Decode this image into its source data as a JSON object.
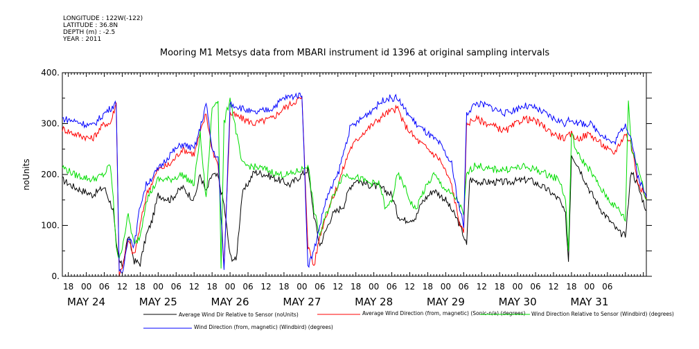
{
  "meta": {
    "longitude": "LONGITUDE : 122W(-122)",
    "latitude": "LATITUDE : 36.8N",
    "depth": "DEPTH (m) : -2.5",
    "year": "YEAR : 2011"
  },
  "chart_data": {
    "type": "line",
    "title": "Mooring M1 Metsys data from MBARI instrument id 1396 at original sampling intervals",
    "ylabel": "noUnits",
    "xlabel": "",
    "ylim": [
      0,
      400
    ],
    "xlim_hours": [
      -8,
      187
    ],
    "y_ticks": [
      "0.",
      "100.",
      "200.",
      "300.",
      "400."
    ],
    "x_hour_ticks": [
      "18",
      "00",
      "06",
      "12",
      "18",
      "00",
      "06",
      "12",
      "18",
      "00",
      "06",
      "12",
      "18",
      "00",
      "06",
      "12",
      "18",
      "00",
      "06",
      "12",
      "18",
      "00",
      "06",
      "12",
      "18",
      "00",
      "06",
      "12",
      "18",
      "00",
      "06"
    ],
    "x_day_labels": [
      "MAY 24",
      "MAY 25",
      "MAY 26",
      "MAY 27",
      "MAY 28",
      "MAY 29",
      "MAY 30",
      "MAY 31"
    ],
    "grid": false,
    "legend_position": "bottom",
    "series": [
      {
        "name": "Average Wind Dir Relative to Sensor (noUnits)",
        "color": "#000000",
        "points": [
          [
            -8,
            190
          ],
          [
            -4,
            175
          ],
          [
            2,
            160
          ],
          [
            6,
            175
          ],
          [
            9,
            130
          ],
          [
            10,
            60
          ],
          [
            11,
            30
          ],
          [
            12,
            20
          ],
          [
            14,
            80
          ],
          [
            16,
            30
          ],
          [
            18,
            25
          ],
          [
            20,
            80
          ],
          [
            22,
            110
          ],
          [
            24,
            160
          ],
          [
            28,
            150
          ],
          [
            32,
            175
          ],
          [
            36,
            150
          ],
          [
            38,
            200
          ],
          [
            40,
            165
          ],
          [
            42,
            200
          ],
          [
            44,
            195
          ],
          [
            46,
            140
          ],
          [
            48,
            40
          ],
          [
            50,
            30
          ],
          [
            52,
            160
          ],
          [
            56,
            205
          ],
          [
            60,
            200
          ],
          [
            64,
            190
          ],
          [
            68,
            180
          ],
          [
            72,
            200
          ],
          [
            74,
            210
          ],
          [
            76,
            120
          ],
          [
            78,
            60
          ],
          [
            80,
            90
          ],
          [
            82,
            120
          ],
          [
            84,
            130
          ],
          [
            86,
            140
          ],
          [
            88,
            175
          ],
          [
            90,
            190
          ],
          [
            94,
            180
          ],
          [
            98,
            175
          ],
          [
            102,
            160
          ],
          [
            104,
            120
          ],
          [
            106,
            110
          ],
          [
            110,
            115
          ],
          [
            112,
            145
          ],
          [
            116,
            170
          ],
          [
            120,
            150
          ],
          [
            124,
            110
          ],
          [
            126,
            80
          ],
          [
            127,
            60
          ],
          [
            128,
            190
          ],
          [
            132,
            185
          ],
          [
            140,
            185
          ],
          [
            148,
            190
          ],
          [
            154,
            170
          ],
          [
            158,
            150
          ],
          [
            160,
            120
          ],
          [
            161,
            30
          ],
          [
            162,
            240
          ],
          [
            164,
            220
          ],
          [
            168,
            170
          ],
          [
            172,
            130
          ],
          [
            176,
            100
          ],
          [
            178,
            85
          ],
          [
            180,
            80
          ],
          [
            182,
            210
          ],
          [
            184,
            180
          ],
          [
            187,
            130
          ]
        ]
      },
      {
        "name": "Average Wind Direction (from, magnetic) (Sonic-n/a) (degrees)",
        "color": "#ff0000",
        "points": [
          [
            -8,
            290
          ],
          [
            -4,
            280
          ],
          [
            2,
            270
          ],
          [
            6,
            300
          ],
          [
            8,
            300
          ],
          [
            10,
            340
          ],
          [
            11,
            0
          ],
          [
            12,
            20
          ],
          [
            14,
            70
          ],
          [
            16,
            40
          ],
          [
            18,
            100
          ],
          [
            20,
            160
          ],
          [
            24,
            210
          ],
          [
            28,
            220
          ],
          [
            32,
            250
          ],
          [
            36,
            240
          ],
          [
            38,
            280
          ],
          [
            40,
            320
          ],
          [
            42,
            250
          ],
          [
            44,
            220
          ],
          [
            46,
            20
          ],
          [
            48,
            320
          ],
          [
            52,
            310
          ],
          [
            56,
            300
          ],
          [
            62,
            310
          ],
          [
            66,
            330
          ],
          [
            70,
            345
          ],
          [
            72,
            350
          ],
          [
            74,
            60
          ],
          [
            76,
            20
          ],
          [
            78,
            80
          ],
          [
            80,
            120
          ],
          [
            84,
            180
          ],
          [
            88,
            250
          ],
          [
            92,
            280
          ],
          [
            96,
            300
          ],
          [
            100,
            320
          ],
          [
            104,
            330
          ],
          [
            106,
            300
          ],
          [
            110,
            270
          ],
          [
            114,
            250
          ],
          [
            118,
            230
          ],
          [
            122,
            180
          ],
          [
            124,
            120
          ],
          [
            126,
            80
          ],
          [
            127,
            300
          ],
          [
            130,
            310
          ],
          [
            134,
            300
          ],
          [
            140,
            285
          ],
          [
            146,
            310
          ],
          [
            150,
            305
          ],
          [
            156,
            280
          ],
          [
            160,
            270
          ],
          [
            162,
            280
          ],
          [
            164,
            270
          ],
          [
            168,
            280
          ],
          [
            172,
            260
          ],
          [
            176,
            240
          ],
          [
            180,
            280
          ],
          [
            182,
            260
          ],
          [
            184,
            190
          ],
          [
            187,
            150
          ]
        ]
      },
      {
        "name": "Wind Direction Relative to Sensor (Windbird) (degrees)",
        "color": "#00dd00",
        "points": [
          [
            -8,
            215
          ],
          [
            -4,
            200
          ],
          [
            2,
            190
          ],
          [
            6,
            200
          ],
          [
            8,
            220
          ],
          [
            9,
            150
          ],
          [
            10,
            60
          ],
          [
            11,
            30
          ],
          [
            12,
            60
          ],
          [
            14,
            120
          ],
          [
            16,
            60
          ],
          [
            18,
            80
          ],
          [
            20,
            150
          ],
          [
            24,
            190
          ],
          [
            28,
            190
          ],
          [
            32,
            200
          ],
          [
            36,
            180
          ],
          [
            38,
            280
          ],
          [
            40,
            150
          ],
          [
            42,
            330
          ],
          [
            44,
            350
          ],
          [
            45,
            20
          ],
          [
            46,
            300
          ],
          [
            48,
            350
          ],
          [
            52,
            220
          ],
          [
            56,
            215
          ],
          [
            60,
            210
          ],
          [
            64,
            200
          ],
          [
            68,
            200
          ],
          [
            72,
            210
          ],
          [
            74,
            220
          ],
          [
            76,
            130
          ],
          [
            78,
            80
          ],
          [
            80,
            120
          ],
          [
            82,
            150
          ],
          [
            84,
            180
          ],
          [
            86,
            200
          ],
          [
            90,
            195
          ],
          [
            94,
            185
          ],
          [
            98,
            180
          ],
          [
            100,
            130
          ],
          [
            102,
            150
          ],
          [
            104,
            200
          ],
          [
            106,
            180
          ],
          [
            108,
            150
          ],
          [
            110,
            130
          ],
          [
            112,
            160
          ],
          [
            116,
            200
          ],
          [
            120,
            170
          ],
          [
            124,
            150
          ],
          [
            126,
            120
          ],
          [
            127,
            200
          ],
          [
            130,
            220
          ],
          [
            134,
            210
          ],
          [
            140,
            210
          ],
          [
            146,
            215
          ],
          [
            150,
            210
          ],
          [
            154,
            200
          ],
          [
            158,
            190
          ],
          [
            160,
            150
          ],
          [
            161,
            50
          ],
          [
            162,
            280
          ],
          [
            164,
            240
          ],
          [
            168,
            210
          ],
          [
            172,
            170
          ],
          [
            176,
            140
          ],
          [
            178,
            130
          ],
          [
            180,
            110
          ],
          [
            181,
            350
          ],
          [
            182,
            250
          ],
          [
            184,
            220
          ],
          [
            187,
            150
          ]
        ]
      },
      {
        "name": "Wind Direction (from, magnetic) (Windbird) (degrees)",
        "color": "#0000ff",
        "points": [
          [
            -8,
            310
          ],
          [
            -4,
            305
          ],
          [
            2,
            295
          ],
          [
            6,
            320
          ],
          [
            8,
            330
          ],
          [
            10,
            340
          ],
          [
            11,
            10
          ],
          [
            12,
            0
          ],
          [
            14,
            80
          ],
          [
            16,
            60
          ],
          [
            18,
            140
          ],
          [
            20,
            180
          ],
          [
            24,
            210
          ],
          [
            28,
            240
          ],
          [
            32,
            260
          ],
          [
            36,
            250
          ],
          [
            38,
            290
          ],
          [
            40,
            340
          ],
          [
            42,
            250
          ],
          [
            44,
            230
          ],
          [
            46,
            10
          ],
          [
            48,
            340
          ],
          [
            52,
            330
          ],
          [
            56,
            320
          ],
          [
            62,
            330
          ],
          [
            66,
            350
          ],
          [
            70,
            355
          ],
          [
            72,
            360
          ],
          [
            74,
            20
          ],
          [
            76,
            50
          ],
          [
            78,
            100
          ],
          [
            80,
            150
          ],
          [
            84,
            200
          ],
          [
            88,
            290
          ],
          [
            92,
            310
          ],
          [
            96,
            330
          ],
          [
            100,
            350
          ],
          [
            104,
            350
          ],
          [
            106,
            330
          ],
          [
            110,
            300
          ],
          [
            114,
            280
          ],
          [
            118,
            260
          ],
          [
            122,
            220
          ],
          [
            124,
            150
          ],
          [
            126,
            100
          ],
          [
            127,
            320
          ],
          [
            130,
            340
          ],
          [
            134,
            335
          ],
          [
            140,
            320
          ],
          [
            146,
            335
          ],
          [
            150,
            330
          ],
          [
            156,
            310
          ],
          [
            160,
            300
          ],
          [
            162,
            310
          ],
          [
            164,
            300
          ],
          [
            168,
            300
          ],
          [
            172,
            280
          ],
          [
            176,
            260
          ],
          [
            180,
            300
          ],
          [
            182,
            270
          ],
          [
            184,
            200
          ],
          [
            187,
            155
          ]
        ]
      }
    ]
  }
}
